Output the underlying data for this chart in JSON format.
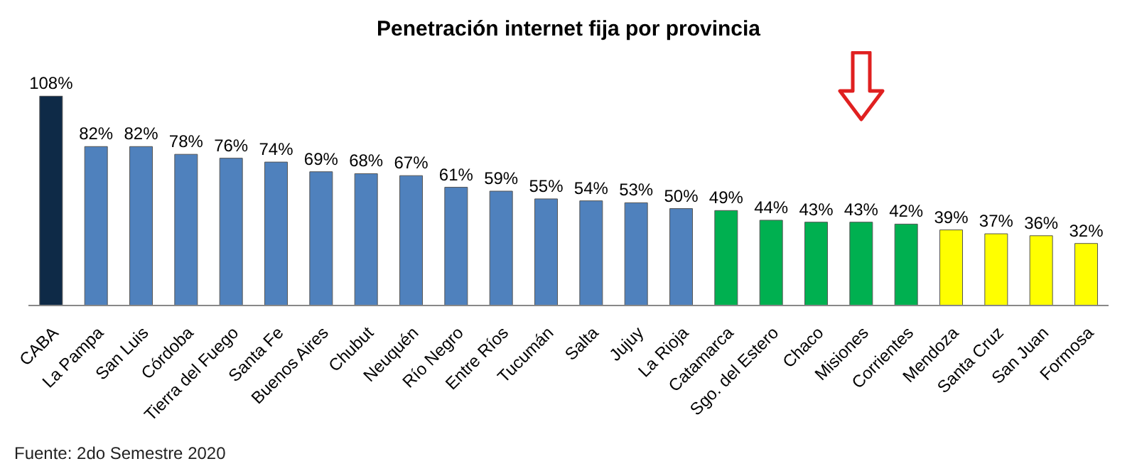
{
  "chart_data": {
    "type": "bar",
    "title": "Penetración internet fija por provincia",
    "categories": [
      "CABA",
      "La Pampa",
      "San Luis",
      "Córdoba",
      "Tierra del Fuego",
      "Santa Fe",
      "Buenos Aires",
      "Chubut",
      "Neuquén",
      "Río Negro",
      "Entre Ríos",
      "Tucumán",
      "Salta",
      "Jujuy",
      "La Rioja",
      "Catamarca",
      "Sgo. del Estero",
      "Chaco",
      "Misiones",
      "Corrientes",
      "Mendoza",
      "Santa Cruz",
      "San Juan",
      "Formosa"
    ],
    "values": [
      108,
      82,
      82,
      78,
      76,
      74,
      69,
      68,
      67,
      61,
      59,
      55,
      54,
      53,
      50,
      49,
      44,
      43,
      43,
      42,
      39,
      37,
      36,
      32
    ],
    "value_labels": [
      "108%",
      "82%",
      "82%",
      "78%",
      "76%",
      "74%",
      "69%",
      "68%",
      "67%",
      "61%",
      "59%",
      "55%",
      "54%",
      "53%",
      "50%",
      "49%",
      "44%",
      "43%",
      "43%",
      "42%",
      "39%",
      "37%",
      "36%",
      "32%"
    ],
    "colors": [
      "#0e2a47",
      "#4f81bd",
      "#4f81bd",
      "#4f81bd",
      "#4f81bd",
      "#4f81bd",
      "#4f81bd",
      "#4f81bd",
      "#4f81bd",
      "#4f81bd",
      "#4f81bd",
      "#4f81bd",
      "#4f81bd",
      "#4f81bd",
      "#4f81bd",
      "#00b050",
      "#00b050",
      "#00b050",
      "#00b050",
      "#00b050",
      "#ffff00",
      "#ffff00",
      "#ffff00",
      "#ffff00"
    ],
    "grid": false,
    "legend": false,
    "annotations": [
      "Fuente: 2do Semestre 2020"
    ]
  }
}
